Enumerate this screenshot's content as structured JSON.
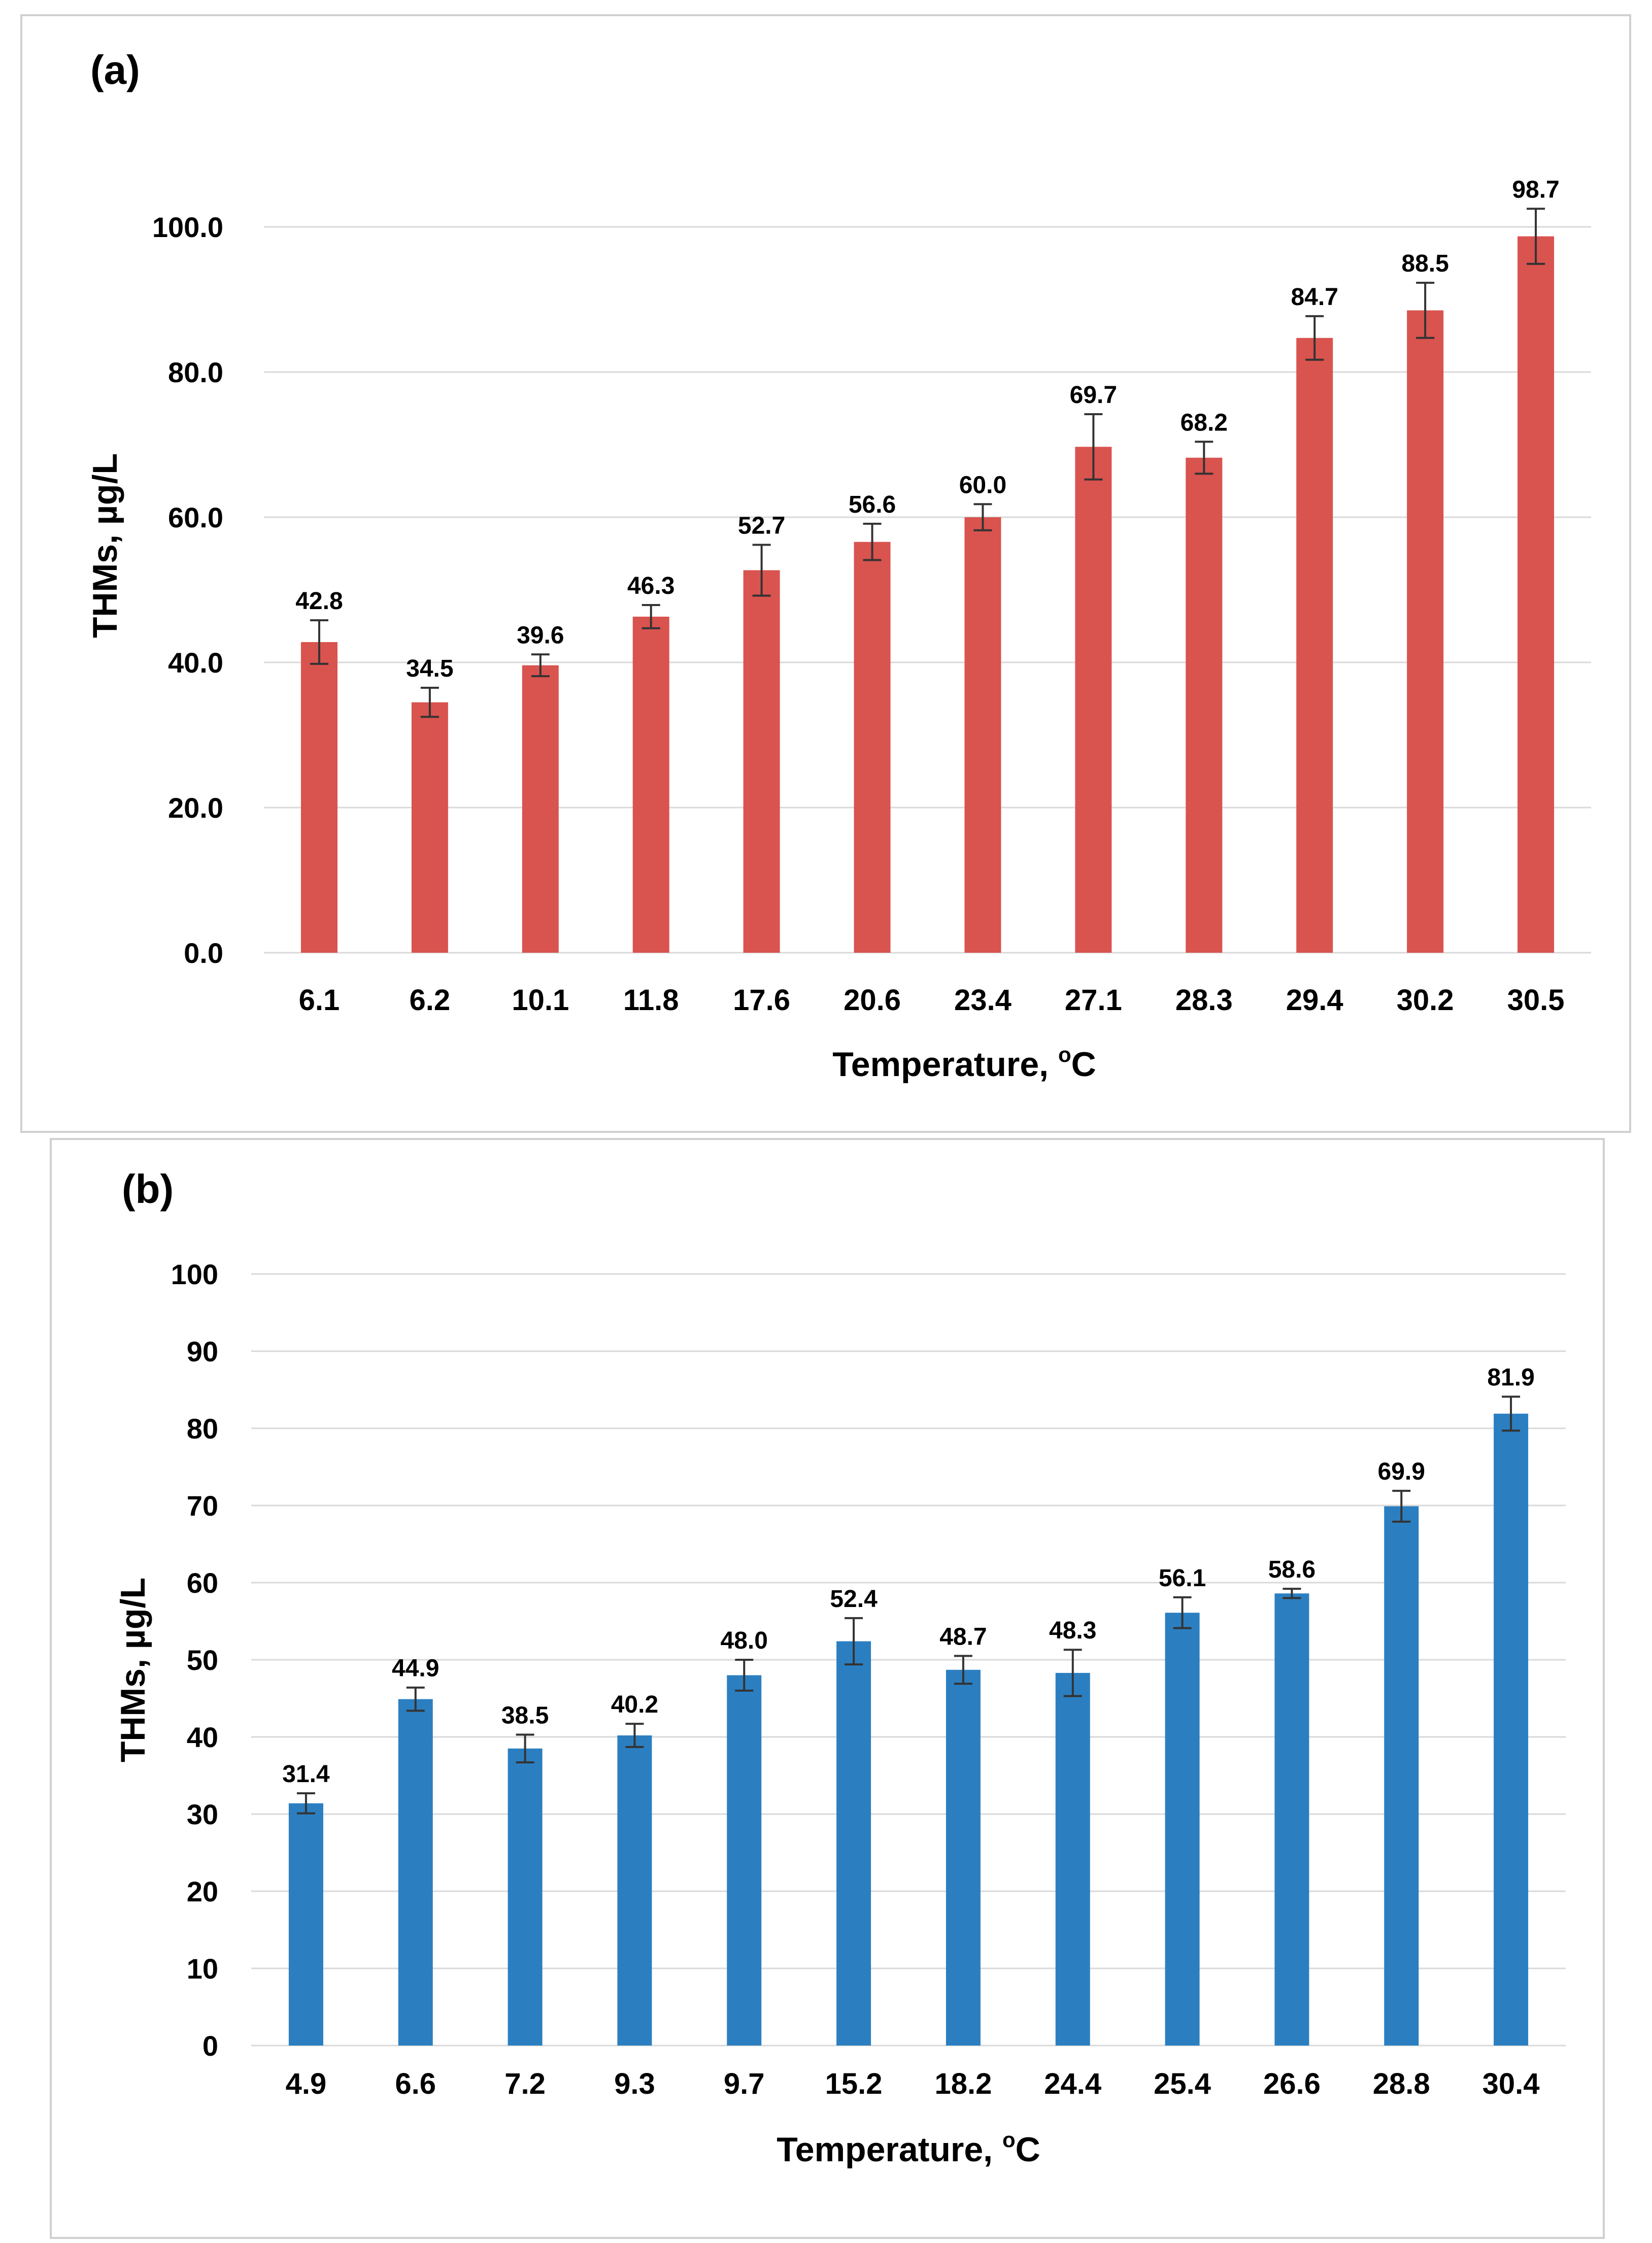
{
  "chart_data": [
    {
      "type": "bar",
      "panel_label": "(a)",
      "categories": [
        "6.1",
        "6.2",
        "10.1",
        "11.8",
        "17.6",
        "20.6",
        "23.4",
        "27.1",
        "28.3",
        "29.4",
        "30.2",
        "30.5"
      ],
      "values": [
        42.8,
        34.5,
        39.6,
        46.3,
        52.7,
        56.6,
        60.0,
        69.7,
        68.2,
        84.7,
        88.5,
        98.7
      ],
      "data_labels": [
        "42.8",
        "34.5",
        "39.6",
        "46.3",
        "52.7",
        "56.6",
        "60.0",
        "69.7",
        "68.2",
        "84.7",
        "88.5",
        "98.7"
      ],
      "errors": [
        3.0,
        2.0,
        1.5,
        1.6,
        3.5,
        2.5,
        1.8,
        4.5,
        2.2,
        3.0,
        3.8,
        3.8
      ],
      "ylim": [
        0,
        100
      ],
      "yticks": [
        0,
        20,
        40,
        60,
        80,
        100
      ],
      "ytick_labels": [
        "0.0",
        "20.0",
        "40.0",
        "60.0",
        "80.0",
        "100.0"
      ],
      "ylabel": "THMs, µg/L",
      "xlabel": "Temperature, ",
      "xlabel_sup": "o",
      "xlabel_unit": "C",
      "color": "#d9534f",
      "grid": true
    },
    {
      "type": "bar",
      "panel_label": "(b)",
      "categories": [
        "4.9",
        "6.6",
        "7.2",
        "9.3",
        "9.7",
        "15.2",
        "18.2",
        "24.4",
        "25.4",
        "26.6",
        "28.8",
        "30.4"
      ],
      "values": [
        31.4,
        44.9,
        38.5,
        40.2,
        48.0,
        52.4,
        48.7,
        48.3,
        56.1,
        58.6,
        69.9,
        81.9
      ],
      "data_labels": [
        "31.4",
        "44.9",
        "38.5",
        "40.2",
        "48.0",
        "52.4",
        "48.7",
        "48.3",
        "56.1",
        "58.6",
        "69.9",
        "81.9"
      ],
      "errors": [
        1.3,
        1.5,
        1.8,
        1.5,
        2.0,
        3.0,
        1.8,
        3.0,
        2.0,
        0.6,
        2.0,
        2.2
      ],
      "ylim": [
        0,
        100
      ],
      "yticks": [
        0,
        10,
        20,
        30,
        40,
        50,
        60,
        70,
        80,
        90,
        100
      ],
      "ytick_labels": [
        "0",
        "10",
        "20",
        "30",
        "40",
        "50",
        "60",
        "70",
        "80",
        "90",
        "100"
      ],
      "ylabel": "THMs, µg/L",
      "xlabel": "Temperature, ",
      "xlabel_sup": "o",
      "xlabel_unit": "C",
      "color": "#2b7fc1",
      "grid": true
    }
  ]
}
